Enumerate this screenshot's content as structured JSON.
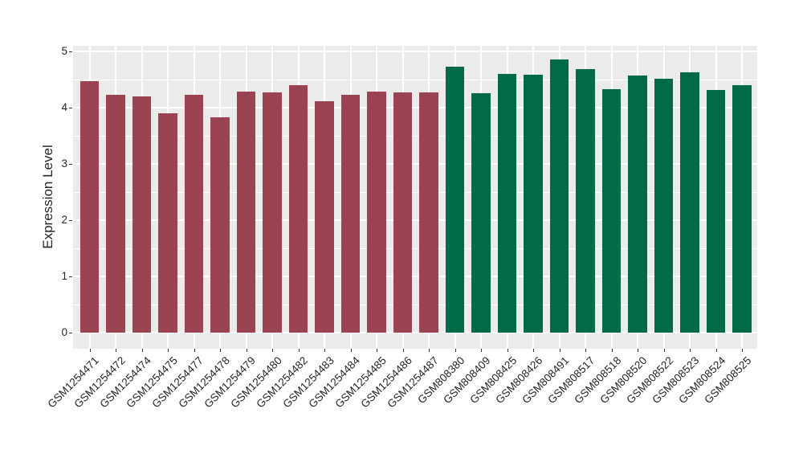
{
  "page": {
    "background_color": "#FFFFFF"
  },
  "chart_data": {
    "type": "bar",
    "title": "",
    "xlabel": "",
    "ylabel": "Expression Level",
    "ylim": [
      0,
      5
    ],
    "yticks": [
      0,
      1,
      2,
      3,
      4,
      5
    ],
    "legend_position": "none",
    "grid": "white major and minor gridlines on gray panel",
    "panel_bg": "#EBEBEB",
    "grid_major_color": "#FFFFFF",
    "grid_minor_color": "#FFFFFF",
    "axis_text_color": "#262626",
    "tick_mark_color": "#333333",
    "x_label_rotation_deg": 45,
    "categories": [
      "GSM1254471",
      "GSM1254472",
      "GSM1254474",
      "GSM1254475",
      "GSM1254477",
      "GSM1254478",
      "GSM1254479",
      "GSM1254480",
      "GSM1254482",
      "GSM1254483",
      "GSM1254484",
      "GSM1254485",
      "GSM1254486",
      "GSM1254487",
      "GSM808380",
      "GSM808409",
      "GSM808425",
      "GSM808426",
      "GSM808491",
      "GSM808517",
      "GSM808518",
      "GSM808520",
      "GSM808522",
      "GSM808523",
      "GSM808524",
      "GSM808525"
    ],
    "values": [
      4.47,
      4.24,
      4.21,
      3.9,
      4.23,
      3.84,
      4.29,
      4.27,
      4.4,
      4.12,
      4.23,
      4.29,
      4.28,
      4.28,
      4.73,
      4.26,
      4.61,
      4.59,
      4.86,
      4.69,
      4.33,
      4.57,
      4.52,
      4.63,
      4.32,
      4.4
    ],
    "color_groups": [
      {
        "color": "#9C4351",
        "count": 14
      },
      {
        "color": "#016A48",
        "count": 12
      }
    ]
  }
}
